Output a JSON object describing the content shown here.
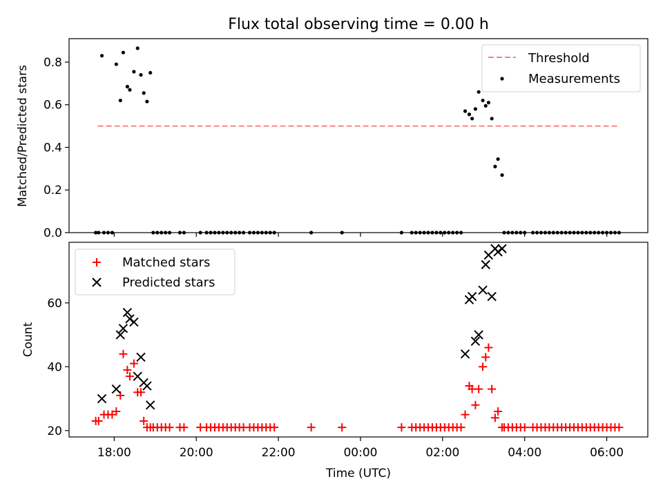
{
  "title": "Flux total observing time = 0.00 h",
  "xlabel": "Time (UTC)",
  "x_ticks": [
    {
      "hour": 18,
      "label": "18:00"
    },
    {
      "hour": 20,
      "label": "20:00"
    },
    {
      "hour": 22,
      "label": "22:00"
    },
    {
      "hour": 24,
      "label": "00:00"
    },
    {
      "hour": 26,
      "label": "02:00"
    },
    {
      "hour": 28,
      "label": "04:00"
    },
    {
      "hour": 30,
      "label": "06:00"
    }
  ],
  "colors": {
    "threshold": "#ff8080",
    "matched": "#ff0000",
    "predicted": "#000000",
    "measurements": "#000000"
  },
  "chart_data": [
    {
      "type": "scatter",
      "ylabel": "Matched/Predicted stars",
      "xlim": [
        16.9,
        31.0
      ],
      "ylim": [
        0,
        0.91
      ],
      "y_ticks": [
        {
          "value": 0.0,
          "label": "0.0"
        },
        {
          "value": 0.2,
          "label": "0.2"
        },
        {
          "value": 0.4,
          "label": "0.4"
        },
        {
          "value": 0.6,
          "label": "0.6"
        },
        {
          "value": 0.8,
          "label": "0.8"
        }
      ],
      "legend_position": "top-right",
      "threshold": {
        "name": "Threshold",
        "value": 0.5,
        "x_range": [
          17.6,
          30.3
        ]
      },
      "series": [
        {
          "name": "Measurements",
          "points": [
            [
              17.7,
              0.83
            ],
            [
              18.05,
              0.79
            ],
            [
              18.15,
              0.62
            ],
            [
              18.22,
              0.845
            ],
            [
              18.32,
              0.685
            ],
            [
              18.38,
              0.67
            ],
            [
              18.48,
              0.755
            ],
            [
              18.57,
              0.865
            ],
            [
              18.65,
              0.74
            ],
            [
              18.72,
              0.655
            ],
            [
              18.8,
              0.615
            ],
            [
              18.88,
              0.75
            ],
            [
              26.55,
              0.57
            ],
            [
              26.65,
              0.555
            ],
            [
              26.72,
              0.535
            ],
            [
              26.8,
              0.58
            ],
            [
              26.88,
              0.66
            ],
            [
              26.98,
              0.62
            ],
            [
              27.05,
              0.595
            ],
            [
              27.12,
              0.61
            ],
            [
              27.2,
              0.535
            ],
            [
              27.28,
              0.31
            ],
            [
              27.35,
              0.345
            ],
            [
              27.45,
              0.27
            ],
            [
              17.55,
              0
            ],
            [
              17.62,
              0
            ],
            [
              17.75,
              0
            ],
            [
              17.85,
              0
            ],
            [
              17.95,
              0
            ],
            [
              18.95,
              0
            ],
            [
              19.05,
              0
            ],
            [
              19.15,
              0
            ],
            [
              19.25,
              0
            ],
            [
              19.35,
              0
            ],
            [
              19.6,
              0
            ],
            [
              19.7,
              0
            ],
            [
              20.1,
              0
            ],
            [
              20.25,
              0
            ],
            [
              20.35,
              0
            ],
            [
              20.45,
              0
            ],
            [
              20.55,
              0
            ],
            [
              20.65,
              0
            ],
            [
              20.75,
              0
            ],
            [
              20.85,
              0
            ],
            [
              20.95,
              0
            ],
            [
              21.05,
              0
            ],
            [
              21.15,
              0
            ],
            [
              21.3,
              0
            ],
            [
              21.4,
              0
            ],
            [
              21.5,
              0
            ],
            [
              21.6,
              0
            ],
            [
              21.7,
              0
            ],
            [
              21.8,
              0
            ],
            [
              21.9,
              0
            ],
            [
              22.8,
              0
            ],
            [
              23.55,
              0
            ],
            [
              25.0,
              0
            ],
            [
              25.25,
              0
            ],
            [
              25.35,
              0
            ],
            [
              25.45,
              0
            ],
            [
              25.55,
              0
            ],
            [
              25.65,
              0
            ],
            [
              25.75,
              0
            ],
            [
              25.85,
              0
            ],
            [
              25.95,
              0
            ],
            [
              26.05,
              0
            ],
            [
              26.15,
              0
            ],
            [
              26.25,
              0
            ],
            [
              26.35,
              0
            ],
            [
              26.45,
              0
            ],
            [
              27.5,
              0
            ],
            [
              27.6,
              0
            ],
            [
              27.7,
              0
            ],
            [
              27.8,
              0
            ],
            [
              27.9,
              0
            ],
            [
              28.0,
              0
            ],
            [
              28.2,
              0
            ],
            [
              28.3,
              0
            ],
            [
              28.4,
              0
            ],
            [
              28.5,
              0
            ],
            [
              28.6,
              0
            ],
            [
              28.7,
              0
            ],
            [
              28.8,
              0
            ],
            [
              28.9,
              0
            ],
            [
              29.0,
              0
            ],
            [
              29.1,
              0
            ],
            [
              29.2,
              0
            ],
            [
              29.3,
              0
            ],
            [
              29.4,
              0
            ],
            [
              29.5,
              0
            ],
            [
              29.6,
              0
            ],
            [
              29.7,
              0
            ],
            [
              29.8,
              0
            ],
            [
              29.9,
              0
            ],
            [
              30.0,
              0
            ],
            [
              30.1,
              0
            ],
            [
              30.2,
              0
            ],
            [
              30.3,
              0
            ]
          ]
        }
      ]
    },
    {
      "type": "scatter",
      "ylabel": "Count",
      "xlim": [
        16.9,
        31.0
      ],
      "ylim": [
        18,
        79
      ],
      "y_ticks": [
        {
          "value": 20,
          "label": "20"
        },
        {
          "value": 40,
          "label": "40"
        },
        {
          "value": 60,
          "label": "60"
        }
      ],
      "legend_position": "top-left",
      "series": [
        {
          "name": "Matched stars",
          "marker": "plus",
          "points": [
            [
              17.55,
              23
            ],
            [
              17.62,
              23
            ],
            [
              17.75,
              25
            ],
            [
              17.85,
              25
            ],
            [
              17.95,
              25
            ],
            [
              18.05,
              26
            ],
            [
              18.15,
              31
            ],
            [
              18.22,
              44
            ],
            [
              18.32,
              39
            ],
            [
              18.38,
              37
            ],
            [
              18.48,
              41
            ],
            [
              18.57,
              32
            ],
            [
              18.65,
              32
            ],
            [
              18.72,
              23
            ],
            [
              18.8,
              21
            ],
            [
              18.88,
              21
            ],
            [
              18.95,
              21
            ],
            [
              19.05,
              21
            ],
            [
              19.15,
              21
            ],
            [
              19.25,
              21
            ],
            [
              19.35,
              21
            ],
            [
              19.6,
              21
            ],
            [
              19.7,
              21
            ],
            [
              20.1,
              21
            ],
            [
              20.25,
              21
            ],
            [
              20.35,
              21
            ],
            [
              20.45,
              21
            ],
            [
              20.55,
              21
            ],
            [
              20.65,
              21
            ],
            [
              20.75,
              21
            ],
            [
              20.85,
              21
            ],
            [
              20.95,
              21
            ],
            [
              21.05,
              21
            ],
            [
              21.15,
              21
            ],
            [
              21.3,
              21
            ],
            [
              21.4,
              21
            ],
            [
              21.5,
              21
            ],
            [
              21.6,
              21
            ],
            [
              21.7,
              21
            ],
            [
              21.8,
              21
            ],
            [
              21.9,
              21
            ],
            [
              22.8,
              21
            ],
            [
              23.55,
              21
            ],
            [
              25.0,
              21
            ],
            [
              25.25,
              21
            ],
            [
              25.35,
              21
            ],
            [
              25.45,
              21
            ],
            [
              25.55,
              21
            ],
            [
              25.65,
              21
            ],
            [
              25.75,
              21
            ],
            [
              25.85,
              21
            ],
            [
              25.95,
              21
            ],
            [
              26.05,
              21
            ],
            [
              26.15,
              21
            ],
            [
              26.25,
              21
            ],
            [
              26.35,
              21
            ],
            [
              26.45,
              21
            ],
            [
              26.55,
              25
            ],
            [
              26.65,
              34
            ],
            [
              26.72,
              33
            ],
            [
              26.8,
              28
            ],
            [
              26.88,
              33
            ],
            [
              26.98,
              40
            ],
            [
              27.05,
              43
            ],
            [
              27.12,
              46
            ],
            [
              27.2,
              33
            ],
            [
              27.28,
              24
            ],
            [
              27.35,
              26
            ],
            [
              27.45,
              21
            ],
            [
              27.5,
              21
            ],
            [
              27.6,
              21
            ],
            [
              27.7,
              21
            ],
            [
              27.8,
              21
            ],
            [
              27.9,
              21
            ],
            [
              28.0,
              21
            ],
            [
              28.2,
              21
            ],
            [
              28.3,
              21
            ],
            [
              28.4,
              21
            ],
            [
              28.5,
              21
            ],
            [
              28.6,
              21
            ],
            [
              28.7,
              21
            ],
            [
              28.8,
              21
            ],
            [
              28.9,
              21
            ],
            [
              29.0,
              21
            ],
            [
              29.1,
              21
            ],
            [
              29.2,
              21
            ],
            [
              29.3,
              21
            ],
            [
              29.4,
              21
            ],
            [
              29.5,
              21
            ],
            [
              29.6,
              21
            ],
            [
              29.7,
              21
            ],
            [
              29.8,
              21
            ],
            [
              29.9,
              21
            ],
            [
              30.0,
              21
            ],
            [
              30.1,
              21
            ],
            [
              30.2,
              21
            ],
            [
              30.3,
              21
            ]
          ]
        },
        {
          "name": "Predicted stars",
          "marker": "x",
          "points": [
            [
              17.7,
              30
            ],
            [
              18.05,
              33
            ],
            [
              18.15,
              50
            ],
            [
              18.22,
              52
            ],
            [
              18.32,
              57
            ],
            [
              18.38,
              55
            ],
            [
              18.48,
              54
            ],
            [
              18.57,
              37
            ],
            [
              18.65,
              43
            ],
            [
              18.72,
              35
            ],
            [
              18.8,
              34
            ],
            [
              18.88,
              28
            ],
            [
              26.55,
              44
            ],
            [
              26.65,
              61
            ],
            [
              26.72,
              62
            ],
            [
              26.8,
              48
            ],
            [
              26.88,
              50
            ],
            [
              26.98,
              64
            ],
            [
              27.05,
              72
            ],
            [
              27.12,
              75
            ],
            [
              27.2,
              62
            ],
            [
              27.28,
              77
            ],
            [
              27.35,
              76
            ],
            [
              27.45,
              77
            ]
          ]
        }
      ]
    }
  ]
}
